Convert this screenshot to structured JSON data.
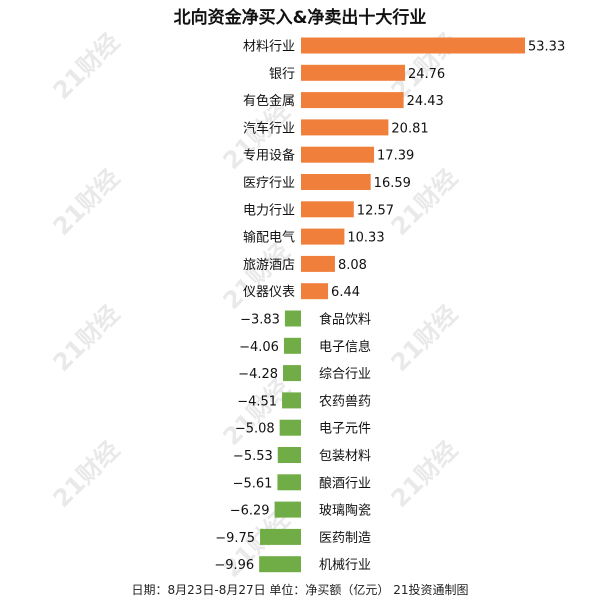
{
  "chart_data": {
    "type": "bar",
    "orientation": "horizontal",
    "title": "北向资金净买入&净卖出十大行业",
    "categories": [
      "材料行业",
      "银行",
      "有色金属",
      "汽车行业",
      "专用设备",
      "医疗行业",
      "电力行业",
      "输配电气",
      "旅游酒店",
      "仪器仪表",
      "食品饮料",
      "电子信息",
      "综合行业",
      "农药兽药",
      "电子元件",
      "包装材料",
      "酿酒行业",
      "玻璃陶瓷",
      "医药制造",
      "机械行业"
    ],
    "values": [
      53.33,
      24.76,
      24.43,
      20.81,
      17.39,
      16.59,
      12.57,
      10.33,
      8.08,
      6.44,
      -3.83,
      -4.06,
      -4.28,
      -4.51,
      -5.08,
      -5.53,
      -5.61,
      -6.29,
      -9.75,
      -9.96
    ],
    "value_labels": [
      "53.33",
      "24.76",
      "24.43",
      "20.81",
      "17.39",
      "16.59",
      "12.57",
      "10.33",
      "8.08",
      "6.44",
      "−3.83",
      "−4.06",
      "−4.28",
      "−4.51",
      "−5.08",
      "−5.53",
      "−5.61",
      "−6.29",
      "−9.75",
      "−9.96"
    ],
    "colors": {
      "positive": "#f07f3c",
      "negative": "#70ad47"
    },
    "grid": false,
    "legend": "none"
  },
  "footer": "日期：8月23日-8月27日 单位：净买额（亿元） 21投资通制图",
  "watermark": "21财经"
}
